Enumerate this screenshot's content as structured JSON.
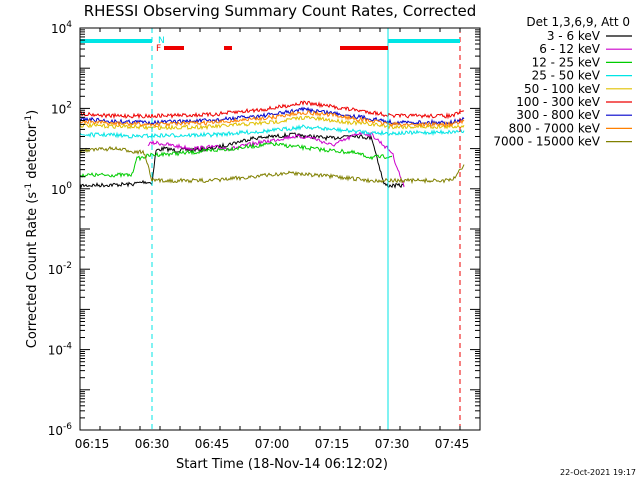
{
  "chart_data": {
    "type": "line",
    "title": "RHESSI Observing Summary Count Rates, Corrected",
    "xlabel": "Start Time (18-Nov-14 06:12:02)",
    "ylabel": "Corrected Count Rate (s⁻¹ detector⁻¹)",
    "ylabel_parts": {
      "base": "Corrected Count Rate (s",
      "sup1": "-1",
      "mid": " detector",
      "sup2": "-1",
      "end": ")"
    },
    "y_scale": "log",
    "x_range_minutes": [
      "06:12",
      "07:52"
    ],
    "y_range": [
      1e-06,
      10000
    ],
    "x_tick_labels": [
      "06:15",
      "06:30",
      "06:45",
      "07:00",
      "07:15",
      "07:30",
      "07:45"
    ],
    "y_tick_labels": [
      {
        "base": "10",
        "exp": "4"
      },
      {
        "base": "10",
        "exp": "2"
      },
      {
        "base": "10",
        "exp": "0"
      },
      {
        "base": "10",
        "exp": "-2"
      },
      {
        "base": "10",
        "exp": "-4"
      },
      {
        "base": "10",
        "exp": "-6"
      }
    ],
    "legend_title": "Det 1,3,6,9, Att 0",
    "legend_position": "right",
    "series": [
      {
        "name": "3 - 6 keV",
        "color": "#000000",
        "times": [
          "06:12",
          "06:25",
          "06:28",
          "06:30",
          "06:31",
          "06:33",
          "06:36",
          "06:45",
          "06:55",
          "07:05",
          "07:15",
          "07:20",
          "07:25",
          "07:28",
          "07:29",
          "07:31",
          "07:33"
        ],
        "values": [
          1.2,
          1.3,
          1.5,
          1.4,
          9,
          10,
          9,
          10,
          18,
          22,
          18,
          22,
          18,
          1.3,
          1.2,
          1.2,
          1.2
        ]
      },
      {
        "name": "6 - 12 keV",
        "color": "#cc00cc",
        "times": [
          "06:29",
          "06:31",
          "06:35",
          "06:40",
          "06:45",
          "06:50",
          "06:55",
          "07:00",
          "07:05",
          "07:10",
          "07:15",
          "07:18",
          "07:22",
          "07:25",
          "07:30",
          "07:33"
        ],
        "values": [
          13,
          14,
          12,
          10,
          11,
          10,
          13,
          16,
          20,
          19,
          12,
          16,
          25,
          22,
          8,
          1.1
        ]
      },
      {
        "name": "12 - 25 keV",
        "color": "#00cc00",
        "times": [
          "06:12",
          "06:25",
          "06:26",
          "06:30",
          "06:40",
          "06:50",
          "07:00",
          "07:10",
          "07:20",
          "07:25",
          "07:30"
        ],
        "values": [
          2.2,
          2.2,
          5.5,
          7,
          8,
          10,
          13,
          10,
          8,
          6,
          6.5
        ]
      },
      {
        "name": "25 - 50 keV",
        "color": "#00e5e5",
        "times": [
          "06:12",
          "06:20",
          "06:26",
          "06:30",
          "06:45",
          "07:00",
          "07:08",
          "07:15",
          "07:25",
          "07:30",
          "07:45",
          "07:48"
        ],
        "values": [
          22,
          22,
          20,
          21,
          22,
          28,
          35,
          30,
          25,
          24,
          26,
          28
        ]
      },
      {
        "name": "50 - 100 keV",
        "color": "#e0c000",
        "times": [
          "06:12",
          "06:25",
          "06:30",
          "06:45",
          "07:00",
          "07:08",
          "07:15",
          "07:25",
          "07:30",
          "07:45",
          "07:48"
        ],
        "values": [
          38,
          35,
          33,
          35,
          45,
          60,
          50,
          40,
          35,
          35,
          38
        ]
      },
      {
        "name": "100 - 300 keV",
        "color": "#ee0000",
        "times": [
          "06:12",
          "06:20",
          "06:30",
          "06:45",
          "07:00",
          "07:08",
          "07:15",
          "07:25",
          "07:30",
          "07:45",
          "07:48"
        ],
        "values": [
          75,
          65,
          65,
          70,
          100,
          140,
          110,
          80,
          65,
          65,
          85
        ]
      },
      {
        "name": "300 - 800 keV",
        "color": "#0000cc",
        "times": [
          "06:12",
          "06:20",
          "06:30",
          "06:45",
          "07:00",
          "07:08",
          "07:15",
          "07:25",
          "07:30",
          "07:45",
          "07:48"
        ],
        "values": [
          55,
          48,
          45,
          50,
          70,
          95,
          78,
          55,
          45,
          45,
          55
        ]
      },
      {
        "name": "800 - 7000 keV",
        "color": "#ff8000",
        "times": [
          "06:12",
          "06:20",
          "06:30",
          "06:45",
          "07:00",
          "07:08",
          "07:15",
          "07:25",
          "07:30",
          "07:45",
          "07:48"
        ],
        "values": [
          48,
          42,
          40,
          44,
          60,
          80,
          68,
          48,
          40,
          40,
          48
        ]
      },
      {
        "name": "7000 - 15000 keV",
        "color": "#808000",
        "times": [
          "06:12",
          "06:20",
          "06:28",
          "06:30",
          "06:34",
          "06:45",
          "06:55",
          "07:05",
          "07:15",
          "07:25",
          "07:28",
          "07:30",
          "07:45",
          "07:48"
        ],
        "values": [
          9,
          10,
          8,
          1.6,
          1.6,
          1.6,
          2,
          2.5,
          2,
          1.6,
          1.6,
          1.6,
          1.6,
          4
        ]
      }
    ],
    "state_bars": [
      {
        "label": "N",
        "color": "#00e5e5",
        "row": "top",
        "intervals": [
          [
            "06:12",
            "06:30"
          ],
          [
            "07:29",
            "07:47"
          ]
        ]
      },
      {
        "label": "F",
        "color": "#ee0000",
        "row": "second",
        "intervals": [
          [
            "06:33",
            "06:38"
          ],
          [
            "06:48",
            "06:50"
          ],
          [
            "07:17",
            "07:29"
          ]
        ]
      }
    ],
    "markers": [
      {
        "color": "#00e5e5",
        "style": "solid",
        "time": "06:12"
      },
      {
        "color": "#00e5e5",
        "style": "dashed",
        "time": "06:30"
      },
      {
        "color": "#00e5e5",
        "style": "solid",
        "time": "07:29"
      },
      {
        "color": "#00e5e5",
        "style": "dashed",
        "time": "07:47"
      },
      {
        "color": "#ee0000",
        "style": "dashed",
        "time": "07:47"
      }
    ],
    "grid": false
  },
  "footer": {
    "timestamp": "22-Oct-2021 19:17"
  }
}
